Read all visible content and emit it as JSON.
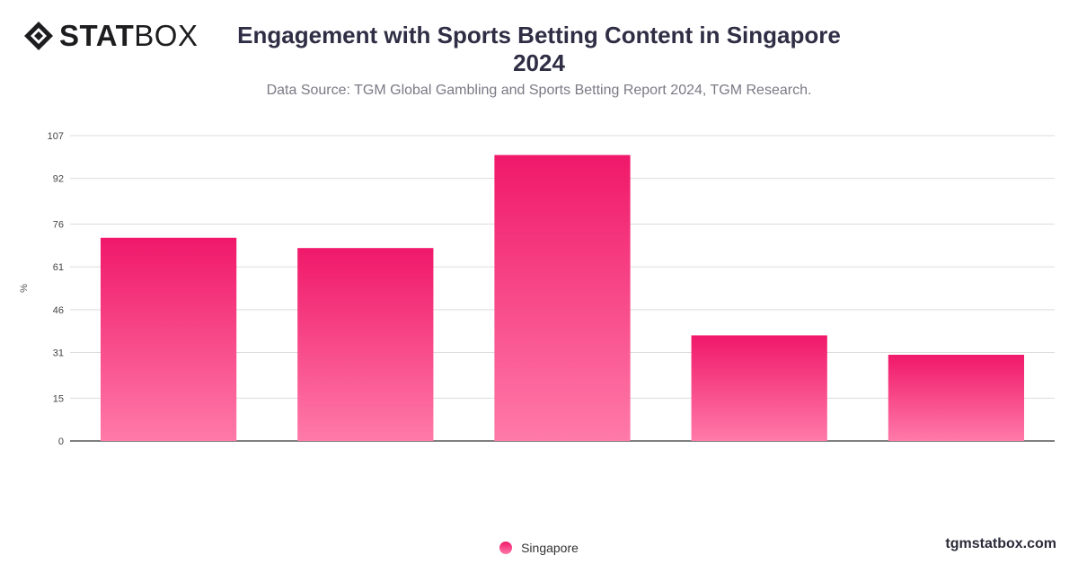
{
  "brand": {
    "logo_bold": "STAT",
    "logo_thin": "BOX"
  },
  "header": {
    "title_line1": "Engagement with Sports Betting Content in Singapore",
    "title_line2": "2024",
    "subtitle": "Data Source: TGM Global Gambling and Sports Betting Report 2024, TGM Research."
  },
  "footer": {
    "site": "tgmstatbox.com"
  },
  "chart_data": {
    "type": "bar",
    "title": "Engagement with Sports Betting Content in Singapore 2024",
    "ylabel": "%",
    "ylim": [
      0,
      107
    ],
    "yticks": [
      0,
      15,
      31,
      46,
      61,
      76,
      92,
      107
    ],
    "grid": true,
    "legend": "bottom-center",
    "categories": [
      "",
      "",
      "",
      "",
      ""
    ],
    "series": [
      {
        "name": "Singapore",
        "values": [
          71.2,
          67.6,
          100.2,
          37.0,
          30.2
        ],
        "color_top": "#f0186a",
        "color_bottom": "#ff7aa8"
      }
    ]
  }
}
